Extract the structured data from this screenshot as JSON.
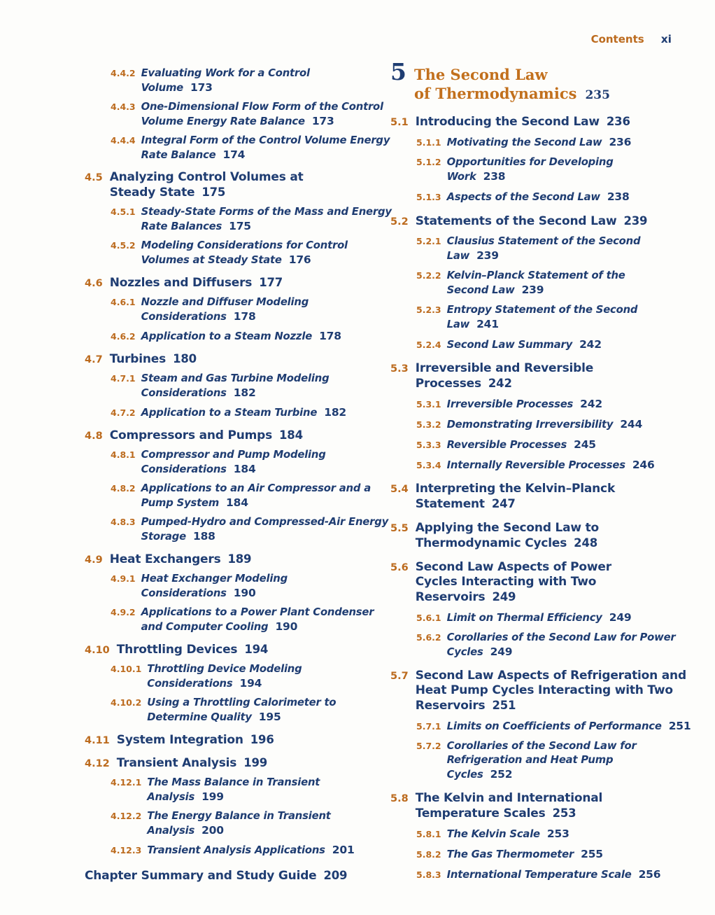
{
  "header": {
    "contents_label": "Contents",
    "folio": "xi"
  },
  "colors": {
    "accent_orange": "#bc6b1e",
    "navy_blue": "#1f3d72",
    "paper": "#fdfdfb"
  },
  "toc": {
    "left": [
      {
        "type": "sub",
        "number": "4.4.2",
        "lines": [
          "Evaluating Work for a Control",
          "Volume"
        ],
        "page": "173"
      },
      {
        "type": "sub",
        "number": "4.4.3",
        "lines": [
          "One-Dimensional Flow Form of the Control",
          "Volume Energy Rate Balance"
        ],
        "page": "173"
      },
      {
        "type": "sub",
        "number": "4.4.4",
        "lines": [
          "Integral Form of the Control Volume Energy",
          "Rate Balance"
        ],
        "page": "174"
      },
      {
        "type": "sec",
        "number": "4.5",
        "lines": [
          "Analyzing Control Volumes at",
          "Steady State"
        ],
        "page": "175"
      },
      {
        "type": "sub",
        "number": "4.5.1",
        "lines": [
          "Steady-State Forms of the Mass and Energy",
          "Rate Balances"
        ],
        "page": "175"
      },
      {
        "type": "sub",
        "number": "4.5.2",
        "lines": [
          "Modeling Considerations for Control",
          "Volumes at Steady State"
        ],
        "page": "176"
      },
      {
        "type": "sec",
        "number": "4.6",
        "lines": [
          "Nozzles and Diffusers"
        ],
        "page": "177"
      },
      {
        "type": "sub",
        "number": "4.6.1",
        "lines": [
          "Nozzle and Diffuser Modeling",
          "Considerations"
        ],
        "page": "178"
      },
      {
        "type": "sub",
        "number": "4.6.2",
        "lines": [
          "Application to a Steam Nozzle"
        ],
        "page": "178"
      },
      {
        "type": "sec",
        "number": "4.7",
        "lines": [
          "Turbines"
        ],
        "page": "180"
      },
      {
        "type": "sub",
        "number": "4.7.1",
        "lines": [
          "Steam and Gas Turbine Modeling",
          "Considerations"
        ],
        "page": "182"
      },
      {
        "type": "sub",
        "number": "4.7.2",
        "lines": [
          "Application to a Steam Turbine"
        ],
        "page": "182"
      },
      {
        "type": "sec",
        "number": "4.8",
        "lines": [
          "Compressors and Pumps"
        ],
        "page": "184"
      },
      {
        "type": "sub",
        "number": "4.8.1",
        "lines": [
          "Compressor and Pump Modeling",
          "Considerations"
        ],
        "page": "184"
      },
      {
        "type": "sub",
        "number": "4.8.2",
        "lines": [
          "Applications to an Air Compressor and a",
          "Pump System"
        ],
        "page": "184"
      },
      {
        "type": "sub",
        "number": "4.8.3",
        "lines": [
          "Pumped-Hydro and Compressed-Air Energy",
          "Storage"
        ],
        "page": "188"
      },
      {
        "type": "sec",
        "number": "4.9",
        "lines": [
          "Heat Exchangers"
        ],
        "page": "189"
      },
      {
        "type": "sub",
        "number": "4.9.1",
        "lines": [
          "Heat Exchanger Modeling",
          "Considerations"
        ],
        "page": "190"
      },
      {
        "type": "sub",
        "number": "4.9.2",
        "lines": [
          "Applications to a Power Plant Condenser",
          "and Computer Cooling"
        ],
        "page": "190"
      },
      {
        "type": "sec",
        "number": "4.10",
        "lines": [
          "Throttling Devices"
        ],
        "page": "194"
      },
      {
        "type": "sub",
        "number": "4.10.1",
        "lines": [
          "Throttling Device Modeling",
          "Considerations"
        ],
        "page": "194"
      },
      {
        "type": "sub",
        "number": "4.10.2",
        "lines": [
          "Using a Throttling Calorimeter to",
          "Determine Quality"
        ],
        "page": "195"
      },
      {
        "type": "sec",
        "number": "4.11",
        "lines": [
          "System Integration"
        ],
        "page": "196"
      },
      {
        "type": "sec",
        "number": "4.12",
        "lines": [
          "Transient Analysis"
        ],
        "page": "199"
      },
      {
        "type": "sub",
        "number": "4.12.1",
        "lines": [
          "The Mass Balance in Transient",
          "Analysis"
        ],
        "page": "199"
      },
      {
        "type": "sub",
        "number": "4.12.2",
        "lines": [
          "The Energy Balance in Transient",
          "Analysis"
        ],
        "page": "200"
      },
      {
        "type": "sub",
        "number": "4.12.3",
        "lines": [
          "Transient Analysis Applications"
        ],
        "page": "201"
      },
      {
        "type": "summary",
        "lines": [
          "Chapter Summary and Study Guide"
        ],
        "page": "209"
      }
    ],
    "right": [
      {
        "type": "chapter",
        "number": "5",
        "lines": [
          "The Second Law",
          "of Thermodynamics"
        ],
        "page": "235"
      },
      {
        "type": "sec",
        "number": "5.1",
        "lines": [
          "Introducing the Second Law"
        ],
        "page": "236"
      },
      {
        "type": "sub",
        "number": "5.1.1",
        "lines": [
          "Motivating the Second Law"
        ],
        "page": "236"
      },
      {
        "type": "sub",
        "number": "5.1.2",
        "lines": [
          "Opportunities for Developing",
          "Work"
        ],
        "page": "238"
      },
      {
        "type": "sub",
        "number": "5.1.3",
        "lines": [
          "Aspects of the Second Law"
        ],
        "page": "238"
      },
      {
        "type": "sec",
        "number": "5.2",
        "lines": [
          "Statements of the Second Law"
        ],
        "page": "239"
      },
      {
        "type": "sub",
        "number": "5.2.1",
        "lines": [
          "Clausius Statement of the Second",
          "Law"
        ],
        "page": "239"
      },
      {
        "type": "sub",
        "number": "5.2.2",
        "lines": [
          "Kelvin–Planck Statement of the",
          "Second Law"
        ],
        "page": "239"
      },
      {
        "type": "sub",
        "number": "5.2.3",
        "lines": [
          "Entropy Statement of the Second",
          "Law"
        ],
        "page": "241"
      },
      {
        "type": "sub",
        "number": "5.2.4",
        "lines": [
          "Second Law Summary"
        ],
        "page": "242"
      },
      {
        "type": "sec",
        "number": "5.3",
        "lines": [
          "Irreversible and Reversible",
          "Processes"
        ],
        "page": "242"
      },
      {
        "type": "sub",
        "number": "5.3.1",
        "lines": [
          "Irreversible Processes"
        ],
        "page": "242"
      },
      {
        "type": "sub",
        "number": "5.3.2",
        "lines": [
          "Demonstrating Irreversibility"
        ],
        "page": "244"
      },
      {
        "type": "sub",
        "number": "5.3.3",
        "lines": [
          "Reversible Processes"
        ],
        "page": "245"
      },
      {
        "type": "sub",
        "number": "5.3.4",
        "lines": [
          "Internally Reversible Processes"
        ],
        "page": "246"
      },
      {
        "type": "sec",
        "number": "5.4",
        "lines": [
          "Interpreting the Kelvin–Planck",
          "Statement"
        ],
        "page": "247"
      },
      {
        "type": "sec",
        "number": "5.5",
        "lines": [
          "Applying the Second Law to",
          "Thermodynamic Cycles"
        ],
        "page": "248"
      },
      {
        "type": "sec",
        "number": "5.6",
        "lines": [
          "Second Law Aspects of Power",
          "Cycles Interacting with Two",
          "Reservoirs"
        ],
        "page": "249"
      },
      {
        "type": "sub",
        "number": "5.6.1",
        "lines": [
          "Limit on Thermal Efficiency"
        ],
        "page": "249"
      },
      {
        "type": "sub",
        "number": "5.6.2",
        "lines": [
          "Corollaries of the Second Law for Power",
          "Cycles"
        ],
        "page": "249"
      },
      {
        "type": "sec",
        "number": "5.7",
        "lines": [
          "Second Law Aspects of Refrigeration and",
          "Heat Pump Cycles Interacting with Two",
          "Reservoirs"
        ],
        "page": "251"
      },
      {
        "type": "sub",
        "number": "5.7.1",
        "lines": [
          "Limits on Coefficients of Performance"
        ],
        "page": "251"
      },
      {
        "type": "sub",
        "number": "5.7.2",
        "lines": [
          "Corollaries of the Second Law for",
          "Refrigeration and Heat Pump",
          "Cycles"
        ],
        "page": "252"
      },
      {
        "type": "sec",
        "number": "5.8",
        "lines": [
          "The Kelvin and International",
          "Temperature Scales"
        ],
        "page": "253"
      },
      {
        "type": "sub",
        "number": "5.8.1",
        "lines": [
          "The Kelvin Scale"
        ],
        "page": "253"
      },
      {
        "type": "sub",
        "number": "5.8.2",
        "lines": [
          "The Gas Thermometer"
        ],
        "page": "255"
      },
      {
        "type": "sub",
        "number": "5.8.3",
        "lines": [
          "International Temperature Scale"
        ],
        "page": "256"
      }
    ]
  }
}
